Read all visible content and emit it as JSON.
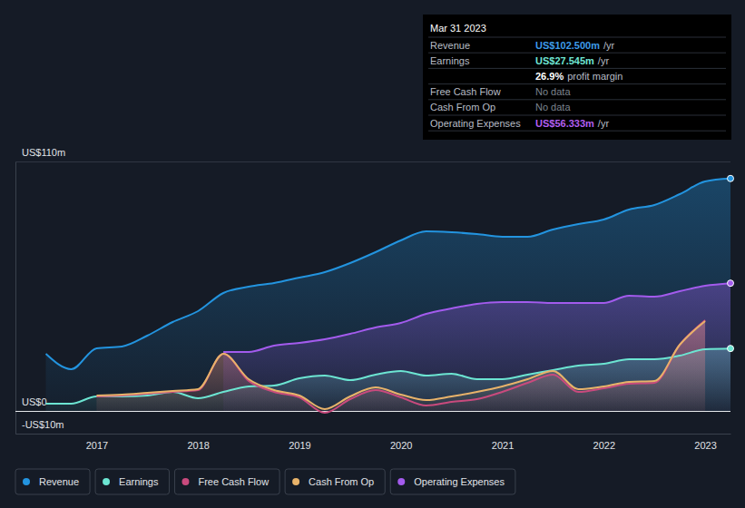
{
  "chart_data": {
    "type": "line",
    "x": [
      2016.5,
      2016.75,
      2017,
      2017.25,
      2017.5,
      2017.75,
      2018,
      2018.25,
      2018.5,
      2018.75,
      2019,
      2019.25,
      2019.5,
      2019.75,
      2020,
      2020.25,
      2020.5,
      2020.75,
      2021,
      2021.25,
      2021.5,
      2021.75,
      2022,
      2022.25,
      2022.5,
      2022.75,
      2023,
      2023.25
    ],
    "xlim": [
      2016.2,
      2023.25
    ],
    "xticks": [
      2017,
      2018,
      2019,
      2020,
      2021,
      2022,
      2023
    ],
    "ylim": [
      -10,
      110
    ],
    "yticks": [
      {
        "value": -10,
        "label": "-US$10m"
      },
      {
        "value": 0,
        "label": "US$0"
      },
      {
        "value": 110,
        "label": "US$110m"
      }
    ],
    "grid": true,
    "legend": "bottom",
    "series": [
      {
        "name": "Revenue",
        "color": "#2394df",
        "values": [
          25.2,
          18.4,
          27.6,
          28.4,
          33.2,
          39.2,
          44,
          52,
          54.8,
          56.4,
          58.8,
          61.2,
          65.2,
          70,
          75.2,
          79.2,
          78.8,
          78,
          76.8,
          76.8,
          80,
          82.4,
          84.4,
          88.8,
          90.8,
          95.6,
          101.2,
          102.5
        ]
      },
      {
        "name": "Earnings",
        "color": "#6ce5d2",
        "values": [
          3.2,
          3.2,
          6.4,
          6.4,
          6.8,
          8.4,
          5.6,
          8.4,
          10.8,
          11.2,
          14.4,
          15.6,
          13.6,
          16,
          17.6,
          15.6,
          16.4,
          14,
          14,
          16,
          18,
          20,
          20.8,
          22.8,
          22.8,
          24.4,
          27.2,
          27.545
        ]
      },
      {
        "name": "Free Cash Flow",
        "color": "#c94a7d",
        "values": [
          null,
          null,
          6.4,
          6.8,
          7.6,
          8.4,
          9.2,
          25.2,
          13.2,
          8.4,
          6,
          -0.8,
          5.2,
          9.2,
          6,
          2.4,
          4,
          5.2,
          8.4,
          12.4,
          16,
          8.4,
          10,
          12,
          12.4,
          29.2,
          40,
          null
        ]
      },
      {
        "name": "Cash From Op",
        "color": "#e8b36a",
        "values": [
          null,
          null,
          6.8,
          7.2,
          8,
          8.8,
          9.6,
          25.2,
          14,
          9.2,
          6.8,
          0.8,
          6.4,
          10.4,
          7.2,
          4.8,
          6.4,
          8.4,
          10.8,
          14,
          17.6,
          9.6,
          10.8,
          12.8,
          13.2,
          29.2,
          39.6,
          null
        ]
      },
      {
        "name": "Operating Expenses",
        "color": "#a35bed",
        "values": [
          null,
          null,
          null,
          null,
          null,
          null,
          null,
          26,
          26,
          28.8,
          30,
          31.6,
          34,
          36.8,
          38.8,
          42.8,
          45.2,
          47.2,
          48,
          48,
          47.6,
          47.6,
          47.6,
          50.8,
          50.4,
          52.8,
          55.2,
          56.333
        ]
      }
    ],
    "annotation": {
      "title": "Mar 31 2023",
      "rows": [
        {
          "label": "Revenue",
          "value": "US$102.500m",
          "unit": "/yr",
          "color": "#3d9be9"
        },
        {
          "label": "Earnings",
          "value": "US$27.545m",
          "unit": "/yr",
          "color": "#6fe6d4"
        },
        {
          "value": "26.9%",
          "unit": "profit margin"
        },
        {
          "label": "Free Cash Flow",
          "value": "No data"
        },
        {
          "label": "Cash From Op",
          "value": "No data"
        },
        {
          "label": "Operating Expenses",
          "value": "US$56.333m",
          "unit": "/yr",
          "color": "#b25ff0"
        }
      ]
    }
  }
}
